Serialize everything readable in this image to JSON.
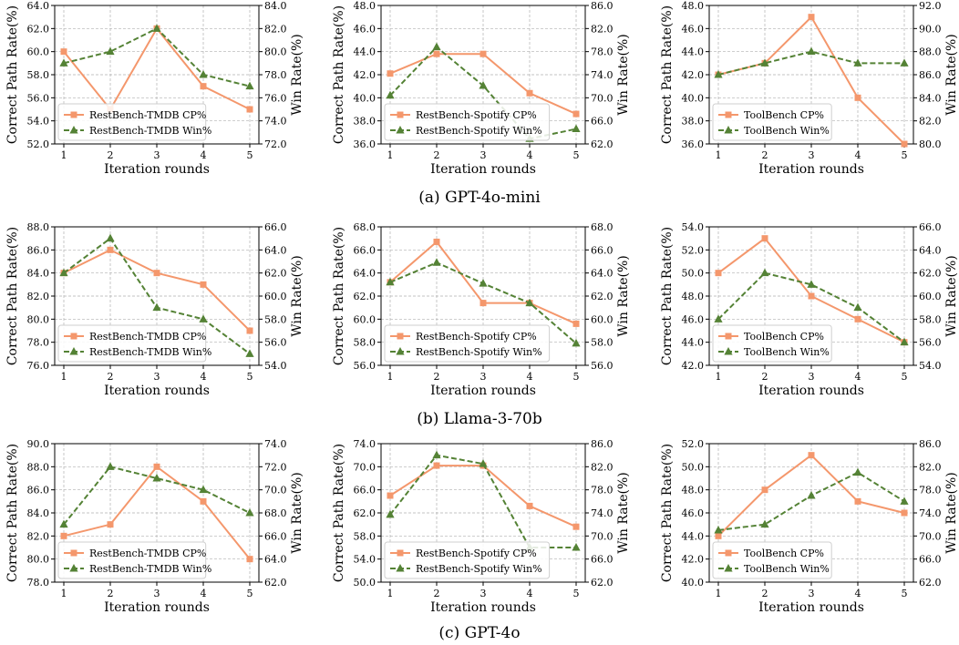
{
  "captions": [
    "(a) GPT-4o-mini",
    "(b) Llama-3-70b",
    "(c) GPT-4o"
  ],
  "colors": {
    "cp": "#f4976c",
    "win": "#548235",
    "grid": "#b0b0b0"
  },
  "chart_data": [
    {
      "type": "line",
      "x": [
        1,
        2,
        3,
        4,
        5
      ],
      "xlabel": "Iteration rounds",
      "ylabel": "Correct Path Rate(%)",
      "y2label": "Win Rate(%)",
      "ylim": [
        52.0,
        64.0
      ],
      "yticks": [
        "52.0",
        "54.0",
        "56.0",
        "58.0",
        "60.0",
        "62.0",
        "64.0"
      ],
      "y2lim": [
        72.0,
        84.0
      ],
      "y2ticks": [
        "72.0",
        "74.0",
        "76.0",
        "78.0",
        "80.0",
        "82.0",
        "84.0"
      ],
      "legend": "lower-left",
      "grid": true,
      "series": [
        {
          "name": "RestBench-TMDB CP%",
          "axis": "left",
          "values": [
            60,
            55,
            62,
            57,
            55
          ]
        },
        {
          "name": "RestBench-TMDB Win%",
          "axis": "right",
          "values": [
            79,
            80,
            82,
            78,
            77
          ]
        }
      ]
    },
    {
      "type": "line",
      "x": [
        1,
        2,
        3,
        4,
        5
      ],
      "xlabel": "Iteration rounds",
      "ylabel": "Correct Path Rate(%)",
      "y2label": "Win Rate(%)",
      "ylim": [
        36.0,
        48.0
      ],
      "yticks": [
        "36.0",
        "38.0",
        "40.0",
        "42.0",
        "44.0",
        "46.0",
        "48.0"
      ],
      "y2lim": [
        62.0,
        86.0
      ],
      "y2ticks": [
        "62.0",
        "66.0",
        "70.0",
        "74.0",
        "78.0",
        "82.0",
        "86.0"
      ],
      "legend": "lower-left",
      "grid": true,
      "series": [
        {
          "name": "RestBench-Spotify CP%",
          "axis": "left",
          "values": [
            42.1,
            43.8,
            43.8,
            40.4,
            38.6
          ]
        },
        {
          "name": "RestBench-Spotify Win%",
          "axis": "right",
          "values": [
            70.4,
            78.8,
            72.1,
            62.9,
            64.6
          ]
        }
      ]
    },
    {
      "type": "line",
      "x": [
        1,
        2,
        3,
        4,
        5
      ],
      "xlabel": "Iteration rounds",
      "ylabel": "Correct Path Rate(%)",
      "y2label": "Win Rate(%)",
      "ylim": [
        36.0,
        48.0
      ],
      "yticks": [
        "36.0",
        "38.0",
        "40.0",
        "42.0",
        "44.0",
        "46.0",
        "48.0"
      ],
      "y2lim": [
        80.0,
        92.0
      ],
      "y2ticks": [
        "80.0",
        "82.0",
        "84.0",
        "86.0",
        "88.0",
        "90.0",
        "92.0"
      ],
      "legend": "lower-left",
      "grid": true,
      "series": [
        {
          "name": "ToolBench CP%",
          "axis": "left",
          "values": [
            42,
            43,
            47,
            40,
            36
          ]
        },
        {
          "name": "ToolBench Win%",
          "axis": "right",
          "values": [
            86,
            87,
            88,
            87,
            87
          ]
        }
      ]
    },
    {
      "type": "line",
      "x": [
        1,
        2,
        3,
        4,
        5
      ],
      "xlabel": "Iteration rounds",
      "ylabel": "Correct Path Rate(%)",
      "y2label": "Win Rate(%)",
      "ylim": [
        76.0,
        88.0
      ],
      "yticks": [
        "76.0",
        "78.0",
        "80.0",
        "82.0",
        "84.0",
        "86.0",
        "88.0"
      ],
      "y2lim": [
        54.0,
        66.0
      ],
      "y2ticks": [
        "54.0",
        "56.0",
        "58.0",
        "60.0",
        "62.0",
        "64.0",
        "66.0"
      ],
      "legend": "lower-left",
      "grid": true,
      "series": [
        {
          "name": "RestBench-TMDB CP%",
          "axis": "left",
          "values": [
            84,
            86,
            84,
            83,
            79
          ]
        },
        {
          "name": "RestBench-TMDB Win%",
          "axis": "right",
          "values": [
            62,
            65,
            59,
            58,
            55
          ]
        }
      ]
    },
    {
      "type": "line",
      "x": [
        1,
        2,
        3,
        4,
        5
      ],
      "xlabel": "Iteration rounds",
      "ylabel": "Correct Path Rate(%)",
      "y2label": "Win Rate(%)",
      "ylim": [
        56.0,
        68.0
      ],
      "yticks": [
        "56.0",
        "58.0",
        "60.0",
        "62.0",
        "64.0",
        "66.0",
        "68.0"
      ],
      "y2lim": [
        56.0,
        68.0
      ],
      "y2ticks": [
        "56.0",
        "58.0",
        "60.0",
        "62.0",
        "64.0",
        "66.0",
        "68.0"
      ],
      "legend": "lower-left",
      "grid": true,
      "series": [
        {
          "name": "RestBench-Spotify CP%",
          "axis": "left",
          "values": [
            63.2,
            66.7,
            61.4,
            61.4,
            59.6
          ]
        },
        {
          "name": "RestBench-Spotify Win%",
          "axis": "right",
          "values": [
            63.2,
            64.9,
            63.1,
            61.4,
            57.9
          ]
        }
      ]
    },
    {
      "type": "line",
      "x": [
        1,
        2,
        3,
        4,
        5
      ],
      "xlabel": "Iteration rounds",
      "ylabel": "Correct Path Rate(%)",
      "y2label": "Win Rate(%)",
      "ylim": [
        42.0,
        54.0
      ],
      "yticks": [
        "42.0",
        "44.0",
        "46.0",
        "48.0",
        "50.0",
        "52.0",
        "54.0"
      ],
      "y2lim": [
        54.0,
        66.0
      ],
      "y2ticks": [
        "54.0",
        "56.0",
        "58.0",
        "60.0",
        "62.0",
        "64.0",
        "66.0"
      ],
      "legend": "lower-left",
      "grid": true,
      "series": [
        {
          "name": "ToolBench CP%",
          "axis": "left",
          "values": [
            50,
            53,
            48,
            46,
            44
          ]
        },
        {
          "name": "ToolBench Win%",
          "axis": "right",
          "values": [
            58,
            62,
            61,
            59,
            56
          ]
        }
      ]
    },
    {
      "type": "line",
      "x": [
        1,
        2,
        3,
        4,
        5
      ],
      "xlabel": "Iteration rounds",
      "ylabel": "Correct Path Rate(%)",
      "y2label": "Win Rate(%)",
      "ylim": [
        78.0,
        90.0
      ],
      "yticks": [
        "78.0",
        "80.0",
        "82.0",
        "84.0",
        "86.0",
        "88.0",
        "90.0"
      ],
      "y2lim": [
        62.0,
        74.0
      ],
      "y2ticks": [
        "62.0",
        "64.0",
        "66.0",
        "68.0",
        "70.0",
        "72.0",
        "74.0"
      ],
      "legend": "lower-left",
      "grid": true,
      "series": [
        {
          "name": "RestBench-TMDB CP%",
          "axis": "left",
          "values": [
            82,
            83,
            88,
            85,
            80
          ]
        },
        {
          "name": "RestBench-TMDB Win%",
          "axis": "right",
          "values": [
            67,
            72,
            71,
            70,
            68
          ]
        }
      ]
    },
    {
      "type": "line",
      "x": [
        1,
        2,
        3,
        4,
        5
      ],
      "xlabel": "Iteration rounds",
      "ylabel": "Correct Path Rate(%)",
      "y2label": "Win Rate(%)",
      "ylim": [
        50.0,
        74.0
      ],
      "yticks": [
        "50.0",
        "54.0",
        "58.0",
        "62.0",
        "66.0",
        "70.0",
        "74.0"
      ],
      "y2lim": [
        62.0,
        86.0
      ],
      "y2ticks": [
        "62.0",
        "66.0",
        "70.0",
        "74.0",
        "78.0",
        "82.0",
        "86.0"
      ],
      "legend": "lower-left",
      "grid": true,
      "series": [
        {
          "name": "RestBench-Spotify CP%",
          "axis": "left",
          "values": [
            65.0,
            70.2,
            70.2,
            63.2,
            59.6
          ]
        },
        {
          "name": "RestBench-Spotify Win%",
          "axis": "right",
          "values": [
            73.7,
            84.0,
            82.5,
            68.0,
            68.0
          ]
        }
      ]
    },
    {
      "type": "line",
      "x": [
        1,
        2,
        3,
        4,
        5
      ],
      "xlabel": "Iteration rounds",
      "ylabel": "Correct Path Rate(%)",
      "y2label": "Win Rate(%)",
      "ylim": [
        40.0,
        52.0
      ],
      "yticks": [
        "40.0",
        "42.0",
        "44.0",
        "46.0",
        "48.0",
        "50.0",
        "52.0"
      ],
      "y2lim": [
        62.0,
        86.0
      ],
      "y2ticks": [
        "62.0",
        "66.0",
        "70.0",
        "74.0",
        "78.0",
        "82.0",
        "86.0"
      ],
      "legend": "lower-left",
      "grid": true,
      "series": [
        {
          "name": "ToolBench CP%",
          "axis": "left",
          "values": [
            44,
            48,
            51,
            47,
            46
          ]
        },
        {
          "name": "ToolBench Win%",
          "axis": "right",
          "values": [
            71,
            72,
            77,
            81,
            76
          ]
        }
      ]
    }
  ]
}
